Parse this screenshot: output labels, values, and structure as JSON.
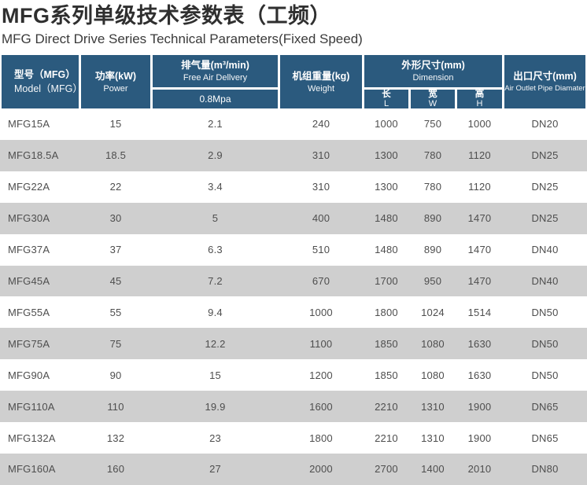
{
  "page": {
    "title": "MFG系列单级技术参数表（工频）",
    "subtitle": "MFG Direct Drive Series Technical Parameters(Fixed Speed)"
  },
  "colors": {
    "header_bg": "#2b5a7e",
    "header_text": "#ffffff",
    "row_alt_bg": "#cfcfcf",
    "row_bg": "#ffffff",
    "data_text": "#4e4e4e",
    "title_text": "#2f2f2f"
  },
  "table": {
    "headers": {
      "model_cn": "型号（MFG）",
      "model_en": "Model（MFG）",
      "power_cn": "功率(kW)",
      "power_en": "Power",
      "fad_cn": "排气量(m³/min)",
      "fad_en": "Free Air Dellvery",
      "fad_pressure": "0.8Mpa",
      "weight_cn": "机组重量(kg)",
      "weight_en": "Weight",
      "dim_cn": "外形尺寸(mm)",
      "dim_en": "Dimension",
      "dim_l_cn": "长",
      "dim_l_en": "L",
      "dim_w_cn": "宽",
      "dim_w_en": "W",
      "dim_h_cn": "高",
      "dim_h_en": "H",
      "outlet_cn": "出口尺寸(mm)",
      "outlet_en": "Air Outlet Pipe Diamater"
    }
  },
  "chart_data": {
    "type": "table",
    "title": "MFG系列单级技术参数表（工频）",
    "subtitle": "MFG Direct Drive Series Technical Parameters(Fixed Speed)",
    "columns": [
      "型号 Model(MFG)",
      "功率(kW) Power",
      "排气量(m³/min) Free Air Dellvery 0.8Mpa",
      "机组重量(kg) Weight",
      "外形尺寸(mm) 长 L",
      "外形尺寸(mm) 宽 W",
      "外形尺寸(mm) 高 H",
      "出口尺寸(mm) Air Outlet Pipe Diamater"
    ],
    "rows": [
      [
        "MFG15A",
        "15",
        "2.1",
        "240",
        "1000",
        "750",
        "1000",
        "DN20"
      ],
      [
        "MFG18.5A",
        "18.5",
        "2.9",
        "310",
        "1300",
        "780",
        "1120",
        "DN25"
      ],
      [
        "MFG22A",
        "22",
        "3.4",
        "310",
        "1300",
        "780",
        "1120",
        "DN25"
      ],
      [
        "MFG30A",
        "30",
        "5",
        "400",
        "1480",
        "890",
        "1470",
        "DN25"
      ],
      [
        "MFG37A",
        "37",
        "6.3",
        "510",
        "1480",
        "890",
        "1470",
        "DN40"
      ],
      [
        "MFG45A",
        "45",
        "7.2",
        "670",
        "1700",
        "950",
        "1470",
        "DN40"
      ],
      [
        "MFG55A",
        "55",
        "9.4",
        "1000",
        "1800",
        "1024",
        "1514",
        "DN50"
      ],
      [
        "MFG75A",
        "75",
        "12.2",
        "1100",
        "1850",
        "1080",
        "1630",
        "DN50"
      ],
      [
        "MFG90A",
        "90",
        "15",
        "1200",
        "1850",
        "1080",
        "1630",
        "DN50"
      ],
      [
        "MFG110A",
        "110",
        "19.9",
        "1600",
        "2210",
        "1310",
        "1900",
        "DN65"
      ],
      [
        "MFG132A",
        "132",
        "23",
        "1800",
        "2210",
        "1310",
        "1900",
        "DN65"
      ],
      [
        "MFG160A",
        "160",
        "27",
        "2000",
        "2700",
        "1400",
        "2010",
        "DN80"
      ]
    ]
  }
}
